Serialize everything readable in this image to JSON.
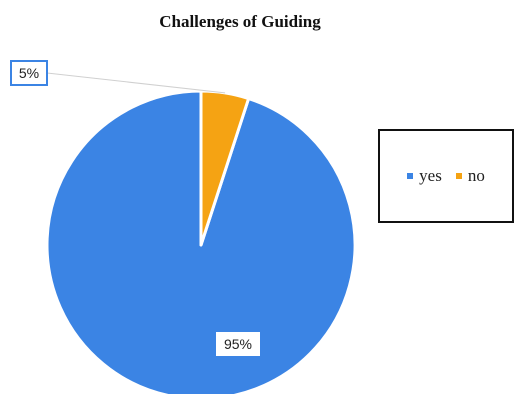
{
  "chart_data": {
    "type": "pie",
    "title": "Challenges of Guiding",
    "categories": [
      "yes",
      "no"
    ],
    "values": [
      95,
      5
    ],
    "data_labels": [
      "95%",
      "5%"
    ],
    "colors": [
      "#3b84e4",
      "#f5a313"
    ],
    "legend": {
      "placement": "right",
      "entries": [
        "yes",
        "no"
      ]
    }
  }
}
